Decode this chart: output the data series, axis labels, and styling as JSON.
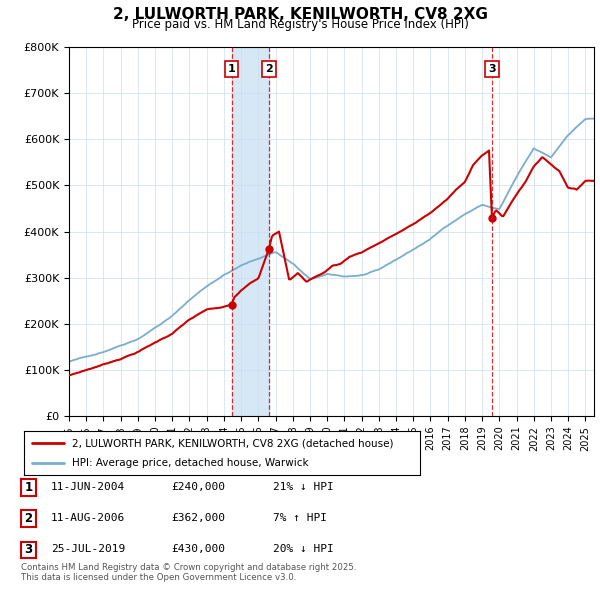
{
  "title1": "2, LULWORTH PARK, KENILWORTH, CV8 2XG",
  "title2": "Price paid vs. HM Land Registry's House Price Index (HPI)",
  "legend_label1": "2, LULWORTH PARK, KENILWORTH, CV8 2XG (detached house)",
  "legend_label2": "HPI: Average price, detached house, Warwick",
  "sale1_label": "1",
  "sale1_date": "11-JUN-2004",
  "sale1_price": "£240,000",
  "sale1_hpi": "21% ↓ HPI",
  "sale1_year": 2004.45,
  "sale1_value": 240000,
  "sale2_label": "2",
  "sale2_date": "11-AUG-2006",
  "sale2_price": "£362,000",
  "sale2_hpi": "7% ↑ HPI",
  "sale2_year": 2006.62,
  "sale2_value": 362000,
  "sale3_label": "3",
  "sale3_date": "25-JUL-2019",
  "sale3_price": "£430,000",
  "sale3_hpi": "20% ↓ HPI",
  "sale3_year": 2019.57,
  "sale3_value": 430000,
  "red_color": "#cc0000",
  "blue_color": "#7aadce",
  "shade_color": "#d6e8f5",
  "footnote": "Contains HM Land Registry data © Crown copyright and database right 2025.\nThis data is licensed under the Open Government Licence v3.0.",
  "ylim": [
    0,
    800000
  ],
  "xlim_start": 1995,
  "xlim_end": 2025.5
}
